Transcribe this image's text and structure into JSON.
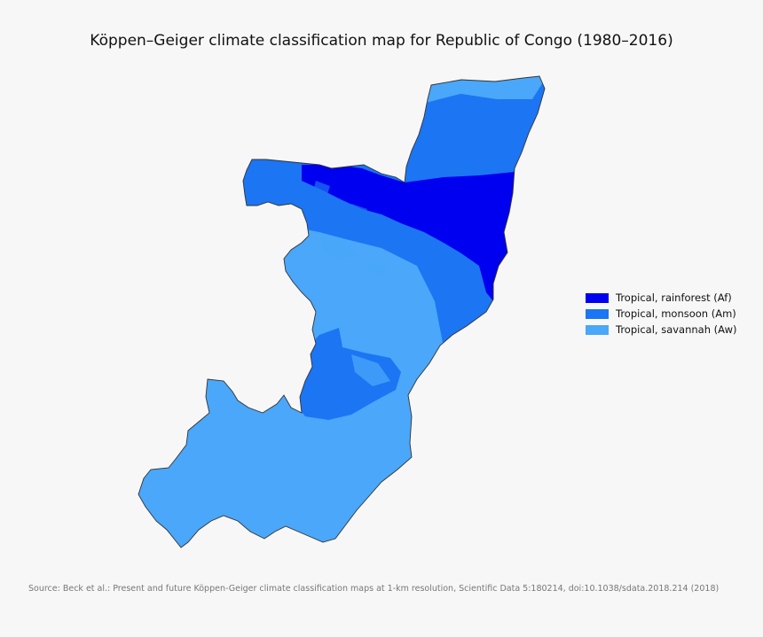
{
  "title": "Köppen–Geiger climate classification map for Republic of Congo (1980–2016)",
  "legend": [
    {
      "label": "Tropical, rainforest (Af)",
      "color": "#0000f0"
    },
    {
      "label": "Tropical, monsoon (Am)",
      "color": "#1c75f2"
    },
    {
      "label": "Tropical, savannah (Aw)",
      "color": "#4aa7f9"
    }
  ],
  "source": "Source: Beck et al.: Present and future Köppen-Geiger climate classification maps at 1-km resolution, Scientific Data 5:180214, doi:10.1038/sdata.2018.214 (2018)"
}
